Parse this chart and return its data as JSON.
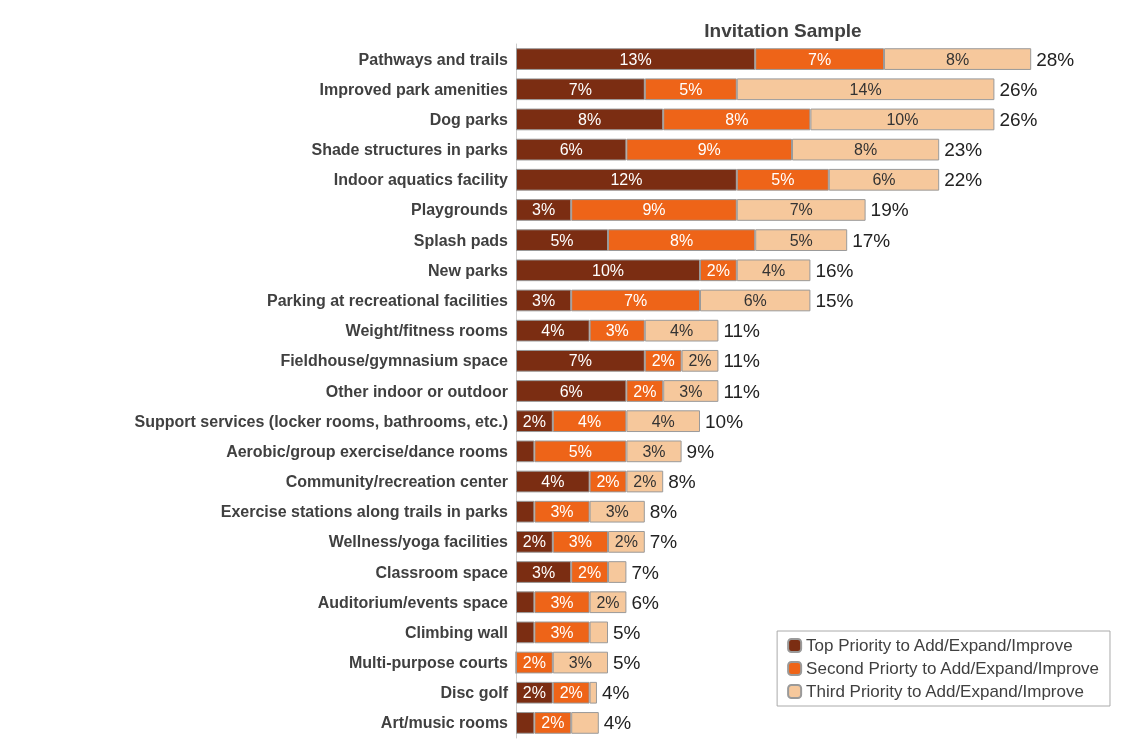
{
  "chart_data": {
    "type": "bar",
    "orientation": "horizontal",
    "stacked": true,
    "title": "Invitation Sample",
    "categories": [
      "Pathways and trails",
      "Improved park amenities",
      "Dog parks",
      "Shade structures in parks",
      "Indoor aquatics facility",
      "Playgrounds",
      "Splash pads",
      "New parks",
      "Parking at recreational facilities",
      "Weight/fitness rooms",
      "Fieldhouse/gymnasium space",
      "Other indoor or outdoor",
      "Support services (locker rooms, bathrooms, etc.)",
      "Aerobic/group exercise/dance rooms",
      "Community/recreation center",
      "Exercise stations along trails in parks",
      "Wellness/yoga facilities",
      "Classroom space",
      "Auditorium/events space",
      "Climbing wall",
      "Multi-purpose courts",
      "Disc golf",
      "Art/music rooms"
    ],
    "series": [
      {
        "name": "Top Priority to Add/Expand/Improve",
        "color": "#7b2d12",
        "values": [
          13,
          7,
          8,
          6,
          12,
          3,
          5,
          10,
          3,
          4,
          7,
          6,
          2,
          1,
          4,
          1,
          2,
          3,
          1,
          1,
          0,
          2,
          1
        ],
        "value_labels": [
          "13%",
          "7%",
          "8%",
          "6%",
          "12%",
          "3%",
          "5%",
          "10%",
          "3%",
          "4%",
          "7%",
          "6%",
          "2%",
          null,
          "4%",
          null,
          "2%",
          "3%",
          null,
          null,
          null,
          "2%",
          null
        ]
      },
      {
        "name": "Second Priorty to Add/Expand/Improve",
        "color": "#ee6418",
        "values": [
          7,
          5,
          8,
          9,
          5,
          9,
          8,
          2,
          7,
          3,
          2,
          2,
          4,
          5,
          2,
          3,
          3,
          2,
          3,
          3,
          2,
          2,
          2
        ],
        "value_labels": [
          "7%",
          "5%",
          "8%",
          "9%",
          "5%",
          "9%",
          "8%",
          "2%",
          "7%",
          "3%",
          "2%",
          "2%",
          "4%",
          "5%",
          "2%",
          "3%",
          "3%",
          "2%",
          "3%",
          "3%",
          "2%",
          "2%",
          "2%"
        ]
      },
      {
        "name": "Third Priority to Add/Expand/Improve",
        "color": "#f6c89c",
        "values": [
          8,
          14,
          10,
          8,
          6,
          7,
          5,
          4,
          6,
          4,
          2,
          3,
          4,
          3,
          2,
          3,
          2,
          1,
          2,
          1,
          3,
          0.4,
          1.5
        ],
        "value_labels": [
          "8%",
          "14%",
          "10%",
          "8%",
          "6%",
          "7%",
          "5%",
          "4%",
          "6%",
          "4%",
          "2%",
          "3%",
          "4%",
          "3%",
          "2%",
          "3%",
          "2%",
          null,
          "2%",
          null,
          "3%",
          null,
          null
        ]
      }
    ],
    "totals": [
      "28%",
      "26%",
      "26%",
      "23%",
      "22%",
      "19%",
      "17%",
      "16%",
      "15%",
      "11%",
      "11%",
      "11%",
      "10%",
      "9%",
      "8%",
      "8%",
      "7%",
      "7%",
      "6%",
      "5%",
      "5%",
      "4%",
      "4%"
    ],
    "legend": "bottom right"
  }
}
